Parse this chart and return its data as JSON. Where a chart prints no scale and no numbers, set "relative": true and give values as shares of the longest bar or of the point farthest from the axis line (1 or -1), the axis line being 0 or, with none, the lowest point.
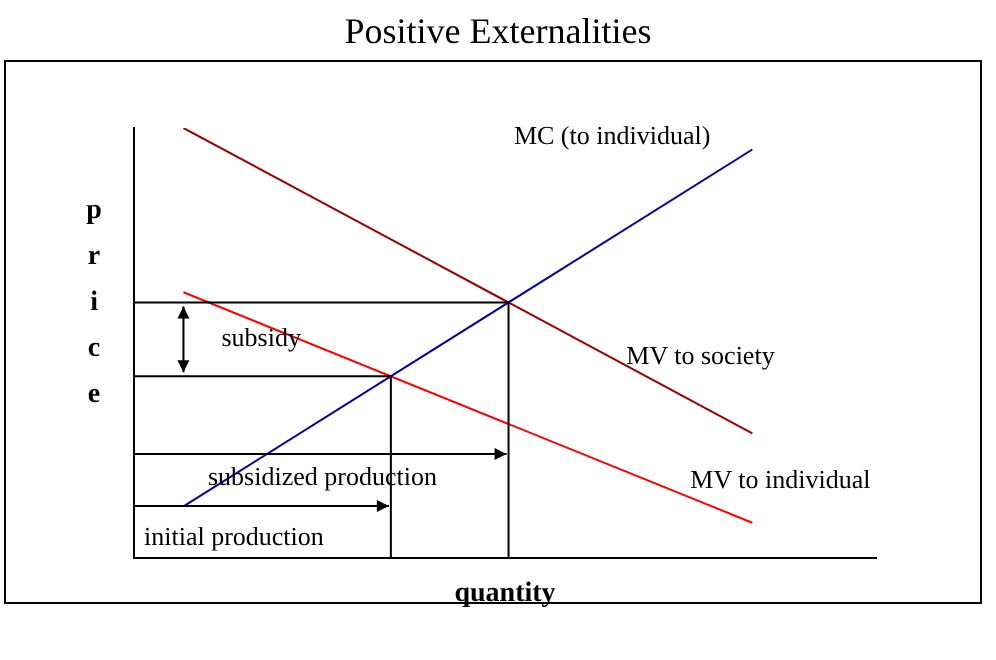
{
  "chart_data": {
    "type": "line",
    "title": "Positive Externalities",
    "xlabel": "quantity",
    "ylabel": "price",
    "relative": true,
    "legend": false,
    "marker": "none",
    "categories": [
      null,
      null,
      null,
      null,
      null,
      null,
      null,
      null,
      null,
      null,
      null,
      null,
      null,
      null,
      null,
      null,
      null,
      null,
      null,
      null,
      null,
      null,
      null,
      null,
      null,
      null,
      null,
      null,
      null,
      null,
      null
    ],
    "series": [
      {
        "name": "MC (to individual)",
        "color": "#000099",
        "values": [
          null,
          null,
          0.12,
          null,
          null,
          null,
          null,
          null,
          null,
          null,
          null,
          null,
          null,
          null,
          null,
          null,
          null,
          null,
          null,
          null,
          null,
          null,
          null,
          null,
          null,
          0.95,
          null,
          null,
          null,
          null,
          null
        ]
      },
      {
        "name": "MV to society",
        "color": "#990000",
        "values": [
          null,
          null,
          1.0,
          null,
          null,
          null,
          null,
          null,
          null,
          null,
          null,
          null,
          null,
          null,
          null,
          null,
          null,
          null,
          null,
          null,
          null,
          null,
          null,
          null,
          null,
          0.29,
          null,
          null,
          null,
          null,
          null
        ]
      },
      {
        "name": "MV to individual",
        "color": "#ff0000",
        "values": [
          null,
          null,
          0.618,
          null,
          null,
          null,
          null,
          null,
          null,
          null,
          null,
          null,
          null,
          null,
          null,
          null,
          null,
          null,
          null,
          null,
          null,
          null,
          null,
          null,
          null,
          0.082,
          null,
          null,
          null,
          null,
          null
        ]
      }
    ],
    "annotations": [
      "subsidy",
      "subsidized production",
      "initial production"
    ]
  }
}
